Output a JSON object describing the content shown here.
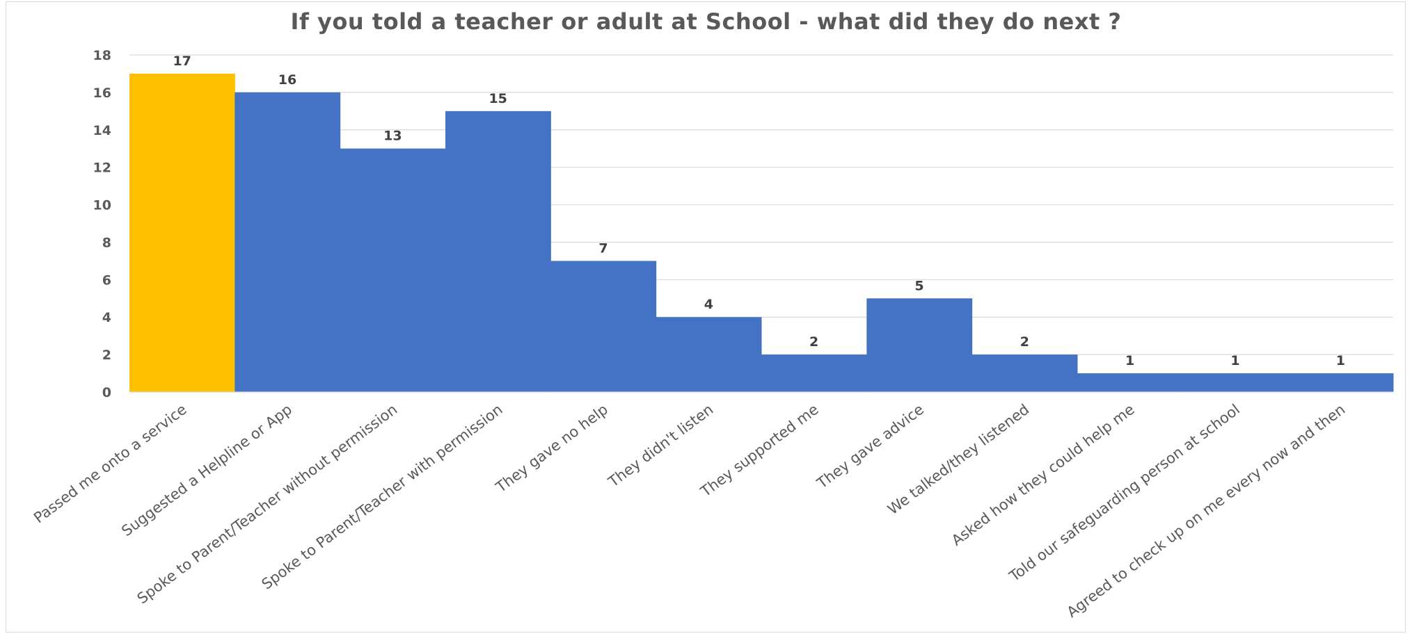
{
  "chart_data": {
    "type": "bar",
    "title": "If you told a teacher or adult at School - what did they do next ?",
    "xlabel": "",
    "ylabel": "",
    "ylim": [
      0,
      18
    ],
    "ytick_step": 2,
    "grid": true,
    "categories": [
      "Passed me onto a service",
      "Suggested a Helpline or App",
      "Spoke to Parent/Teacher without permission",
      "Spoke to Parent/Teacher with permission",
      "They gave no help",
      "They didn't listen",
      "They supported me",
      "They gave advice",
      "We talked/they listened",
      "Asked how they could help me",
      "Told our safeguarding person at school",
      "Agreed to check up on me every now and then"
    ],
    "values": [
      17,
      16,
      13,
      15,
      7,
      4,
      2,
      5,
      2,
      1,
      1,
      1
    ],
    "colors": [
      "#FFC000",
      "#4472C4",
      "#4472C4",
      "#4472C4",
      "#4472C4",
      "#4472C4",
      "#4472C4",
      "#4472C4",
      "#4472C4",
      "#4472C4",
      "#4472C4",
      "#4472C4"
    ],
    "data_labels": true
  }
}
